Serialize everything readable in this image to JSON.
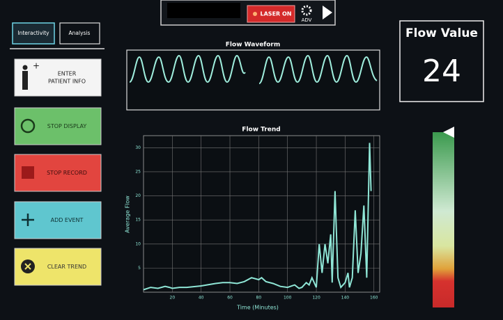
{
  "tabs": [
    "Interactivity",
    "Analysis"
  ],
  "buttons": [
    {
      "lines": [
        "ENTER",
        "PATIENT INFO"
      ]
    },
    {
      "lines": [
        "STOP DISPLAY"
      ]
    },
    {
      "lines": [
        "STOP RECORD"
      ]
    },
    {
      "lines": [
        "ADD EVENT"
      ]
    },
    {
      "lines": [
        "CLEAR TREND"
      ]
    }
  ],
  "top_bar": {
    "laser": "LASER ON",
    "adv": "ADV"
  },
  "waveform": {
    "title": "Flow Waveform"
  },
  "trend": {
    "type": "line",
    "title": "Flow Trend",
    "x_label": "Time (Minutes)",
    "y_label": "Average Flow",
    "x": [
      0,
      5,
      10,
      15,
      18,
      20,
      25,
      30,
      40,
      50,
      55,
      60,
      65,
      70,
      75,
      80,
      82,
      85,
      90,
      95,
      100,
      105,
      108,
      110,
      113,
      115,
      117,
      120,
      122,
      124,
      126,
      128,
      130,
      131,
      133,
      135,
      137,
      140,
      142,
      143,
      145,
      147,
      149,
      151,
      153,
      155,
      157,
      158
    ],
    "y": [
      0.5,
      1,
      0.8,
      1.2,
      1,
      0.8,
      1,
      1,
      1.3,
      1.8,
      2,
      2,
      1.8,
      2.2,
      3,
      2.6,
      3,
      2.2,
      1.8,
      1.2,
      1,
      1.5,
      0.8,
      1,
      2,
      1.5,
      3,
      1,
      10,
      4,
      10,
      6,
      12,
      2,
      21,
      3,
      1,
      2,
      4,
      1,
      3,
      17,
      4,
      8,
      18,
      3,
      31,
      21
    ],
    "xlim": [
      0,
      164
    ],
    "ylim": [
      0,
      32.5
    ],
    "xticks": [
      20,
      40,
      60,
      80,
      100,
      120,
      140,
      160
    ],
    "yticks": [
      5,
      10,
      15,
      20,
      25,
      30
    ],
    "color": "#8fe6d6",
    "grid": true
  },
  "flow_value": {
    "title": "Flow Value",
    "value": 24
  }
}
